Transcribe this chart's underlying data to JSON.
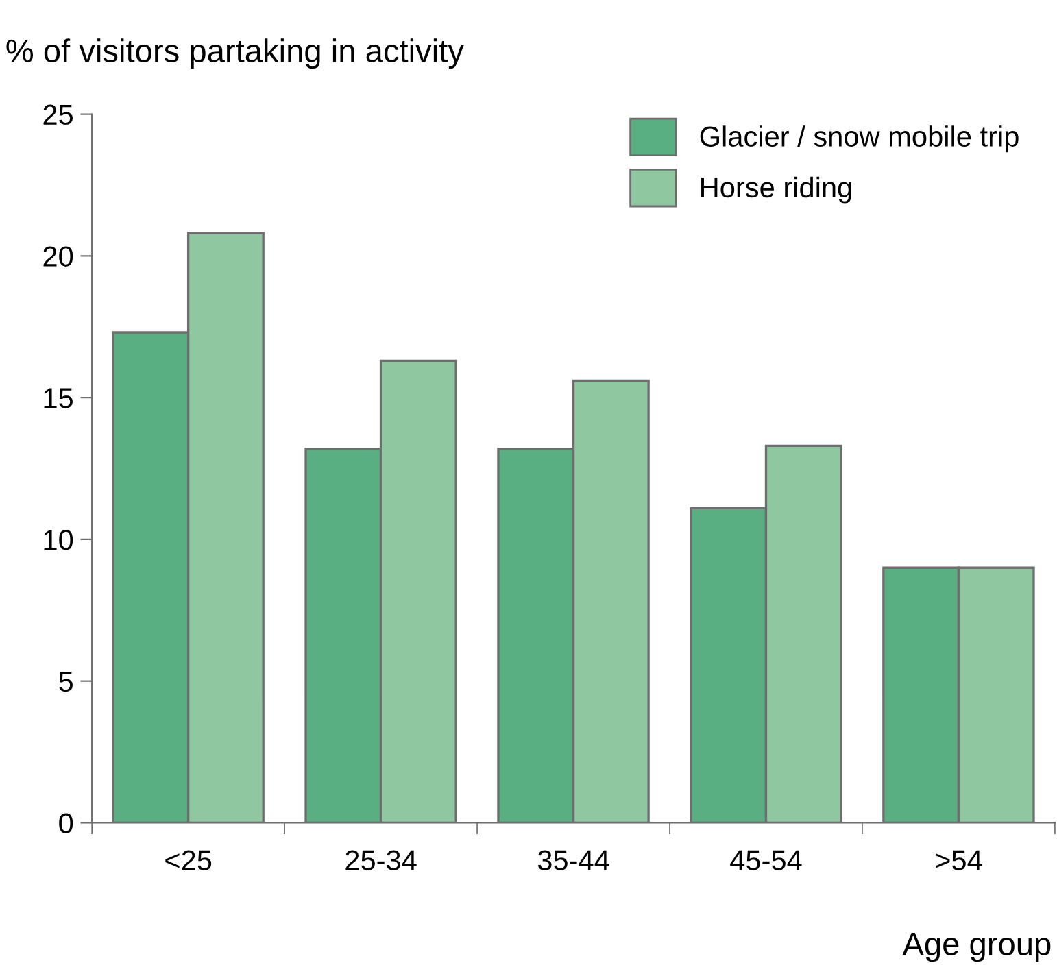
{
  "chart_data": {
    "type": "bar",
    "ylabel": "% of visitors partaking in activity",
    "xlabel": "Age group",
    "categories": [
      "<25",
      "25-34",
      "35-44",
      "45-54",
      ">54"
    ],
    "series": [
      {
        "name": "Glacier / snow mobile trip",
        "color": "#5aaf82",
        "values": [
          17.3,
          13.2,
          13.2,
          11.1,
          9.0
        ]
      },
      {
        "name": "Horse riding",
        "color": "#8fc7a0",
        "values": [
          20.8,
          16.3,
          15.6,
          13.3,
          9.0
        ]
      }
    ],
    "ylim": [
      0,
      25
    ],
    "yticks": [
      0,
      5,
      10,
      15,
      20,
      25
    ],
    "grid": false,
    "legend": "top right"
  }
}
